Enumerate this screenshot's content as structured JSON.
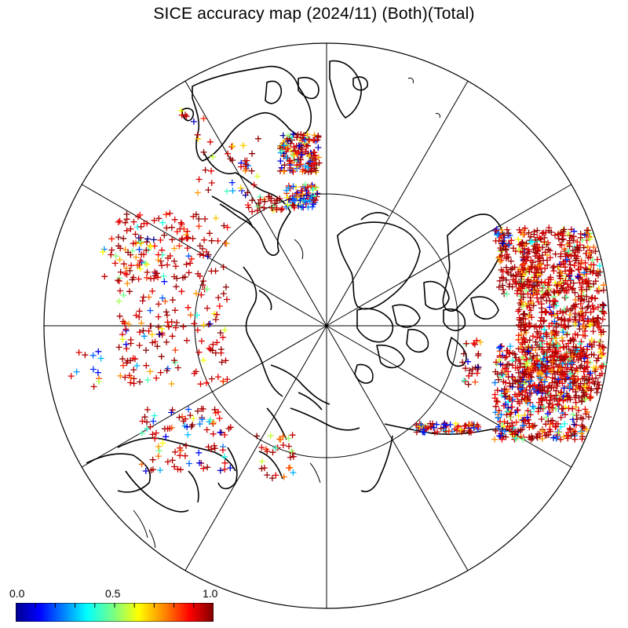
{
  "title": "SICE accuracy map (2024/11) (Both)(Total)",
  "colorbar": {
    "labels": [
      "0.0",
      "0.5",
      "1.0"
    ],
    "values": [
      0.0,
      0.5,
      1.0
    ],
    "colormap": "jet",
    "stops": [
      "#00008f",
      "#0000ff",
      "#00ffff",
      "#7fff7f",
      "#ffff00",
      "#ff7f00",
      "#ff0000",
      "#7f0000"
    ]
  },
  "map": {
    "projection": "north-polar-stereographic",
    "graticule_meridians": 12,
    "graticule_parallels": 1,
    "marker": "plus",
    "marker_note": "accuracy values plotted as colored plus markers"
  }
}
